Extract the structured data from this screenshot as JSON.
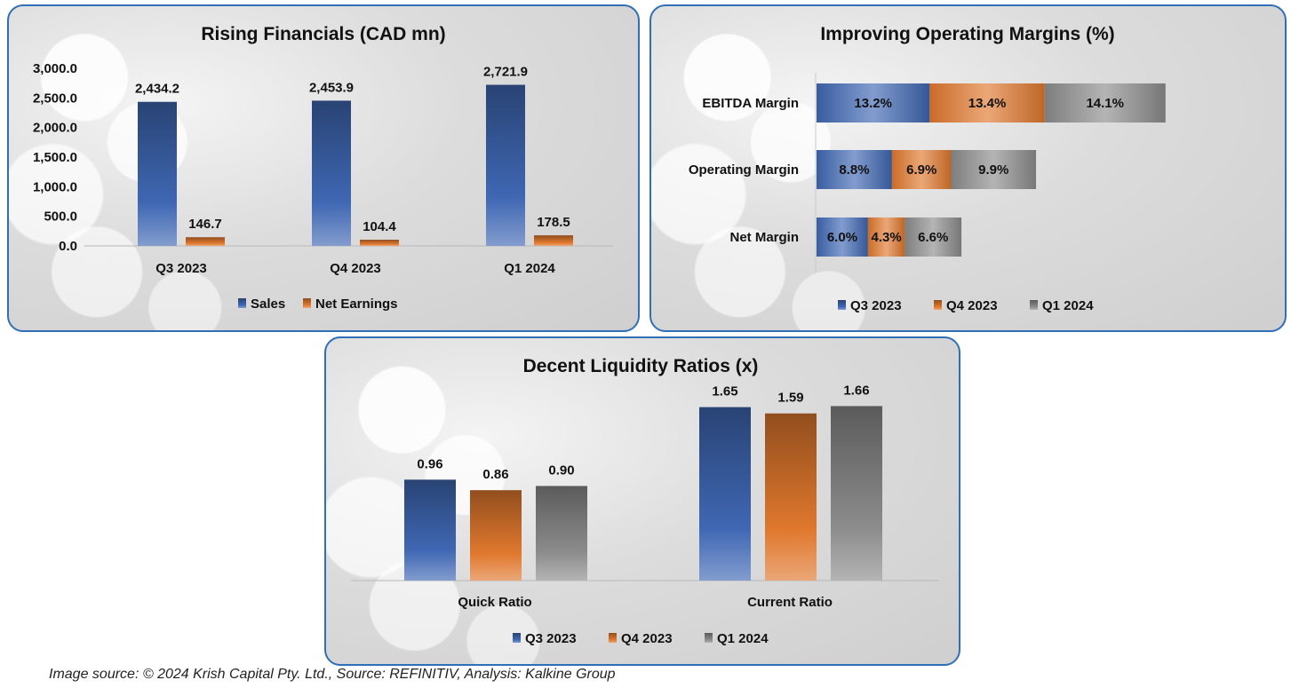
{
  "chart_data": [
    {
      "id": "financials",
      "type": "bar",
      "title": "Rising Financials (CAD mn)",
      "categories": [
        "Q3 2023",
        "Q4 2023",
        "Q1 2024"
      ],
      "series": [
        {
          "name": "Sales",
          "values": [
            2434.2,
            2453.9,
            2721.9
          ],
          "labels": [
            "2,434.2",
            "2,453.9",
            "2,721.9"
          ],
          "color": "#3f67b3"
        },
        {
          "name": "Net Earnings",
          "values": [
            146.7,
            104.4,
            178.5
          ],
          "labels": [
            "146.7",
            "104.4",
            "178.5"
          ],
          "color": "#e0782e"
        }
      ],
      "yticks": [
        "0.0",
        "500.0",
        "1,000.0",
        "1,500.0",
        "2,000.0",
        "2,500.0",
        "3,000.0"
      ],
      "ylim": [
        0,
        3000
      ],
      "xlabel": "",
      "ylabel": "",
      "legend": "bottom",
      "grid": false
    },
    {
      "id": "margins",
      "type": "bar",
      "orientation": "horizontal-stacked",
      "title": "Improving Operating Margins (%)",
      "categories": [
        "EBITDA Margin",
        "Operating Margin",
        "Net Margin"
      ],
      "series": [
        {
          "name": "Q3 2023",
          "values": [
            13.2,
            8.8,
            6.0
          ],
          "labels": [
            "13.2%",
            "8.8%",
            "6.0%"
          ],
          "color": "#3f67b3"
        },
        {
          "name": "Q4 2023",
          "values": [
            13.4,
            6.9,
            4.3
          ],
          "labels": [
            "13.4%",
            "6.9%",
            "4.3%"
          ],
          "color": "#e0782e"
        },
        {
          "name": "Q1 2024",
          "values": [
            14.1,
            9.9,
            6.6
          ],
          "labels": [
            "14.1%",
            "9.9%",
            "6.6%"
          ],
          "color": "#8c8c8c"
        }
      ],
      "legend": "bottom",
      "grid": false
    },
    {
      "id": "liquidity",
      "type": "bar",
      "title": "Decent Liquidity Ratios (x)",
      "categories": [
        "Quick Ratio",
        "Current Ratio"
      ],
      "series": [
        {
          "name": "Q3 2023",
          "values": [
            0.96,
            1.65
          ],
          "labels": [
            "0.96",
            "1.65"
          ],
          "color": "#3f67b3"
        },
        {
          "name": "Q4 2023",
          "values": [
            0.86,
            1.59
          ],
          "labels": [
            "0.86",
            "1.59"
          ],
          "color": "#e0782e"
        },
        {
          "name": "Q1 2024",
          "values": [
            0.9,
            1.66
          ],
          "labels": [
            "0.90",
            "1.66"
          ],
          "color": "#8c8c8c"
        }
      ],
      "ylim": [
        0,
        1.8
      ],
      "legend": "bottom",
      "grid": false
    }
  ],
  "footer": {
    "caption": "Image source: © 2024 Krish Capital Pty. Ltd., Source: REFINITIV, Analysis: Kalkine Group"
  }
}
